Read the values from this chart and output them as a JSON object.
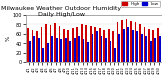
{
  "title": "Milwaukee Weather Outdoor Humidity\nDaily High/Low",
  "title_fontsize": 4.5,
  "bar_width": 0.4,
  "background_color": "#ffffff",
  "grid_color": "#dddddd",
  "high_color": "#cc0000",
  "low_color": "#0000cc",
  "ylabel": "%",
  "ylim": [
    0,
    100
  ],
  "yticks": [
    0,
    20,
    40,
    60,
    80,
    100
  ],
  "categories": [
    "4/1",
    "4/2",
    "4/3",
    "4/4",
    "4/5",
    "4/6",
    "4/7",
    "4/8",
    "4/9",
    "4/10",
    "4/11",
    "4/12",
    "4/13",
    "4/14",
    "4/15",
    "4/16",
    "4/17",
    "4/18",
    "4/19",
    "4/20",
    "4/21",
    "4/22",
    "4/23",
    "4/24",
    "4/25",
    "4/26",
    "4/27",
    "4/28",
    "4/29",
    "4/30"
  ],
  "high_values": [
    72,
    68,
    65,
    75,
    80,
    78,
    82,
    76,
    70,
    68,
    72,
    75,
    80,
    78,
    76,
    74,
    72,
    68,
    70,
    65,
    85,
    90,
    92,
    88,
    85,
    80,
    75,
    70,
    68,
    72
  ],
  "low_values": [
    45,
    55,
    50,
    30,
    40,
    55,
    50,
    48,
    52,
    45,
    50,
    55,
    48,
    42,
    60,
    65,
    55,
    50,
    45,
    30,
    60,
    70,
    75,
    68,
    65,
    60,
    55,
    45,
    50,
    55
  ]
}
